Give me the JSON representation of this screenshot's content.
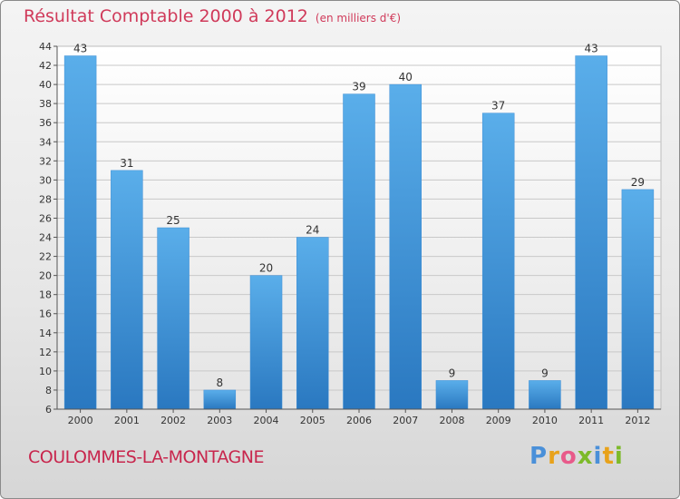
{
  "title": "Résultat Comptable 2000 à 2012",
  "subtitle": "(en milliers d'€)",
  "commune": "COULOMMES-LA-MONTAGNE",
  "logo": {
    "letters": [
      "P",
      "r",
      "o",
      "x",
      "i",
      "t",
      "i"
    ],
    "colors": [
      "#4a90d9",
      "#e8a21a",
      "#e85a8a",
      "#7dba2a",
      "#4a90d9",
      "#e8a21a",
      "#7dba2a"
    ]
  },
  "colors": {
    "bar": "#4a9be0",
    "bar_dark": "#2a78c0",
    "title": "#d03a5a",
    "grid": "#c8c8c8"
  },
  "chart_data": {
    "type": "bar",
    "title": "Résultat Comptable 2000 à 2012",
    "xlabel": "",
    "ylabel": "",
    "categories": [
      "2000",
      "2001",
      "2002",
      "2003",
      "2004",
      "2005",
      "2006",
      "2007",
      "2008",
      "2009",
      "2010",
      "2011",
      "2012"
    ],
    "values": [
      43,
      31,
      25,
      8,
      20,
      24,
      39,
      40,
      9,
      37,
      9,
      43,
      29
    ],
    "ylim": [
      6,
      44
    ],
    "yticks": [
      6,
      8,
      10,
      12,
      14,
      16,
      18,
      20,
      22,
      24,
      26,
      28,
      30,
      32,
      34,
      36,
      38,
      40,
      42,
      44
    ],
    "grid": true
  }
}
